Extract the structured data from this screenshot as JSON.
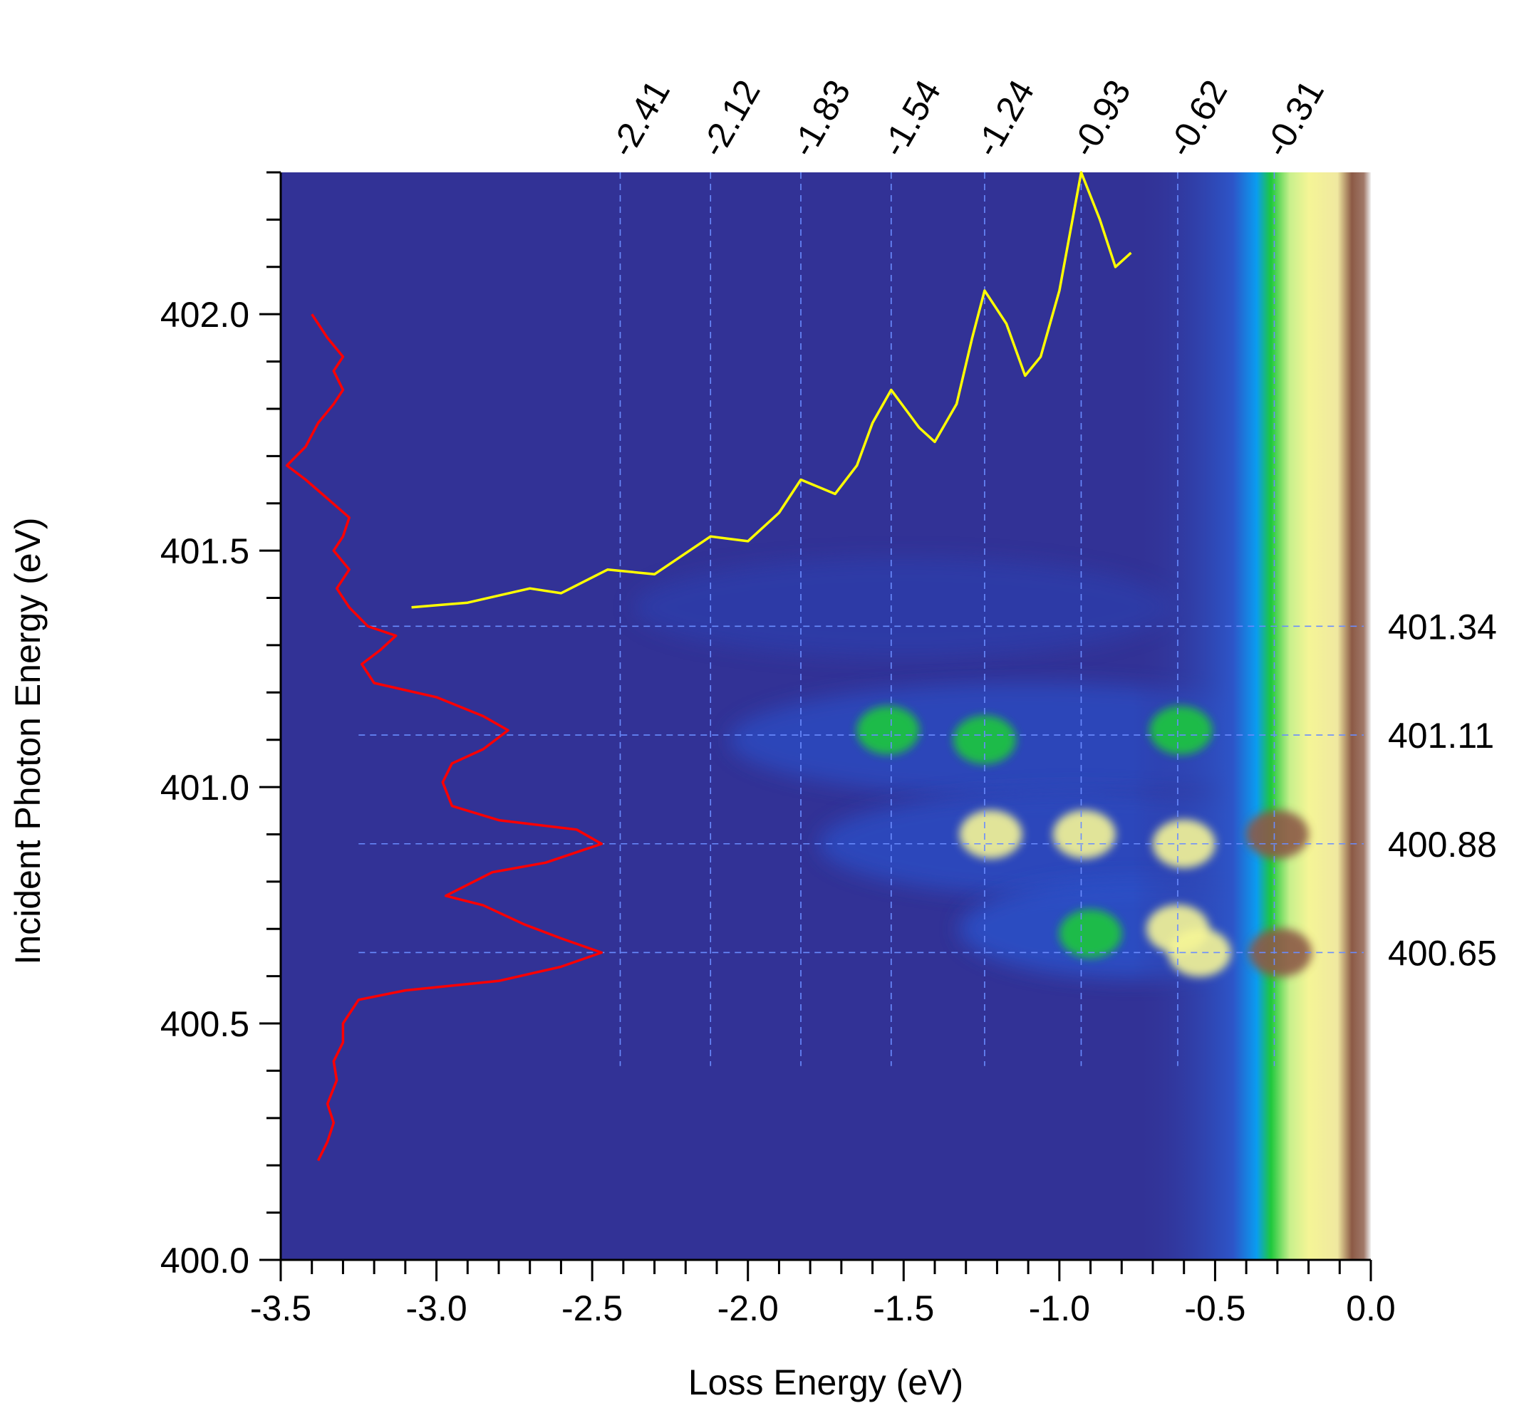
{
  "chart_data": {
    "type": "heatmap",
    "xlabel": "Loss Energy (eV)",
    "ylabel": "Incident Photon Energy (eV)",
    "xlim": [
      -3.5,
      0.0
    ],
    "ylim": [
      400.0,
      402.3
    ],
    "x_ticks": [
      "-3.5",
      "-3.0",
      "-2.5",
      "-2.0",
      "-1.5",
      "-1.0",
      "-0.5",
      "0.0"
    ],
    "y_ticks": [
      "400.0",
      "400.5",
      "401.0",
      "401.5",
      "402.0"
    ],
    "colormap": [
      "#323296",
      "#2a4fc8",
      "#0a9cf0",
      "#1ec83c",
      "#f5f596",
      "#8c5a46",
      "#f0f0f0"
    ],
    "vertical_markers": [
      {
        "x": -2.41,
        "label": "-2.41"
      },
      {
        "x": -2.12,
        "label": "-2.12"
      },
      {
        "x": -1.83,
        "label": "-1.83"
      },
      {
        "x": -1.54,
        "label": "-1.54"
      },
      {
        "x": -1.24,
        "label": "-1.24"
      },
      {
        "x": -0.93,
        "label": "-0.93"
      },
      {
        "x": -0.62,
        "label": "-0.62"
      },
      {
        "x": -0.31,
        "label": "-0.31"
      }
    ],
    "horizontal_markers": [
      {
        "y": 401.34,
        "label": "401.34"
      },
      {
        "y": 401.11,
        "label": "401.11"
      },
      {
        "y": 400.88,
        "label": "400.88"
      },
      {
        "y": 400.65,
        "label": "400.65"
      }
    ],
    "hotspots": [
      {
        "x": -1.55,
        "y": 401.12,
        "level": 0.5
      },
      {
        "x": -1.24,
        "y": 401.1,
        "level": 0.45
      },
      {
        "x": -0.61,
        "y": 401.12,
        "level": 0.45
      },
      {
        "x": -1.22,
        "y": 400.9,
        "level": 0.62
      },
      {
        "x": -0.92,
        "y": 400.9,
        "level": 0.7
      },
      {
        "x": -0.6,
        "y": 400.88,
        "level": 0.66
      },
      {
        "x": -0.9,
        "y": 400.69,
        "level": 0.45
      },
      {
        "x": -0.62,
        "y": 400.7,
        "level": 0.63
      },
      {
        "x": -0.55,
        "y": 400.65,
        "level": 0.6
      },
      {
        "x": -0.29,
        "y": 400.65,
        "level": 0.9
      },
      {
        "x": -0.3,
        "y": 400.9,
        "level": 0.83
      }
    ],
    "series": [
      {
        "color": "#ff0000",
        "points": [
          [
            -3.38,
            400.21
          ],
          [
            -3.35,
            400.25
          ],
          [
            -3.33,
            400.29
          ],
          [
            -3.35,
            400.33
          ],
          [
            -3.32,
            400.38
          ],
          [
            -3.33,
            400.42
          ],
          [
            -3.3,
            400.46
          ],
          [
            -3.3,
            400.5
          ],
          [
            -3.25,
            400.55
          ],
          [
            -3.1,
            400.57
          ],
          [
            -2.8,
            400.59
          ],
          [
            -2.6,
            400.62
          ],
          [
            -2.47,
            400.65
          ],
          [
            -2.6,
            400.68
          ],
          [
            -2.72,
            400.71
          ],
          [
            -2.85,
            400.75
          ],
          [
            -2.97,
            400.77
          ],
          [
            -2.82,
            400.82
          ],
          [
            -2.65,
            400.84
          ],
          [
            -2.47,
            400.88
          ],
          [
            -2.55,
            400.91
          ],
          [
            -2.8,
            400.93
          ],
          [
            -2.95,
            400.96
          ],
          [
            -2.98,
            401.01
          ],
          [
            -2.95,
            401.05
          ],
          [
            -2.85,
            401.08
          ],
          [
            -2.77,
            401.12
          ],
          [
            -2.85,
            401.15
          ],
          [
            -3.0,
            401.19
          ],
          [
            -3.2,
            401.22
          ],
          [
            -3.24,
            401.26
          ],
          [
            -3.18,
            401.29
          ],
          [
            -3.13,
            401.32
          ],
          [
            -3.22,
            401.34
          ],
          [
            -3.28,
            401.38
          ],
          [
            -3.32,
            401.42
          ],
          [
            -3.28,
            401.46
          ],
          [
            -3.33,
            401.5
          ],
          [
            -3.3,
            401.53
          ],
          [
            -3.28,
            401.57
          ],
          [
            -3.35,
            401.61
          ],
          [
            -3.42,
            401.65
          ],
          [
            -3.48,
            401.68
          ],
          [
            -3.42,
            401.72
          ],
          [
            -3.38,
            401.77
          ],
          [
            -3.33,
            401.81
          ],
          [
            -3.3,
            401.84
          ],
          [
            -3.33,
            401.88
          ],
          [
            -3.3,
            401.91
          ],
          [
            -3.35,
            401.95
          ],
          [
            -3.38,
            401.98
          ],
          [
            -3.4,
            402.0
          ]
        ]
      },
      {
        "color": "#ffff00",
        "points": [
          [
            -3.08,
            401.38
          ],
          [
            -2.9,
            401.39
          ],
          [
            -2.7,
            401.42
          ],
          [
            -2.6,
            401.41
          ],
          [
            -2.45,
            401.46
          ],
          [
            -2.3,
            401.45
          ],
          [
            -2.12,
            401.53
          ],
          [
            -2.0,
            401.52
          ],
          [
            -1.9,
            401.58
          ],
          [
            -1.83,
            401.65
          ],
          [
            -1.72,
            401.62
          ],
          [
            -1.65,
            401.68
          ],
          [
            -1.6,
            401.77
          ],
          [
            -1.54,
            401.84
          ],
          [
            -1.45,
            401.76
          ],
          [
            -1.4,
            401.73
          ],
          [
            -1.33,
            401.81
          ],
          [
            -1.28,
            401.95
          ],
          [
            -1.24,
            402.05
          ],
          [
            -1.17,
            401.98
          ],
          [
            -1.11,
            401.87
          ],
          [
            -1.06,
            401.91
          ],
          [
            -1.0,
            402.05
          ],
          [
            -0.93,
            402.3
          ],
          [
            -0.87,
            402.2
          ],
          [
            -0.82,
            402.1
          ],
          [
            -0.77,
            402.13
          ]
        ]
      }
    ]
  }
}
